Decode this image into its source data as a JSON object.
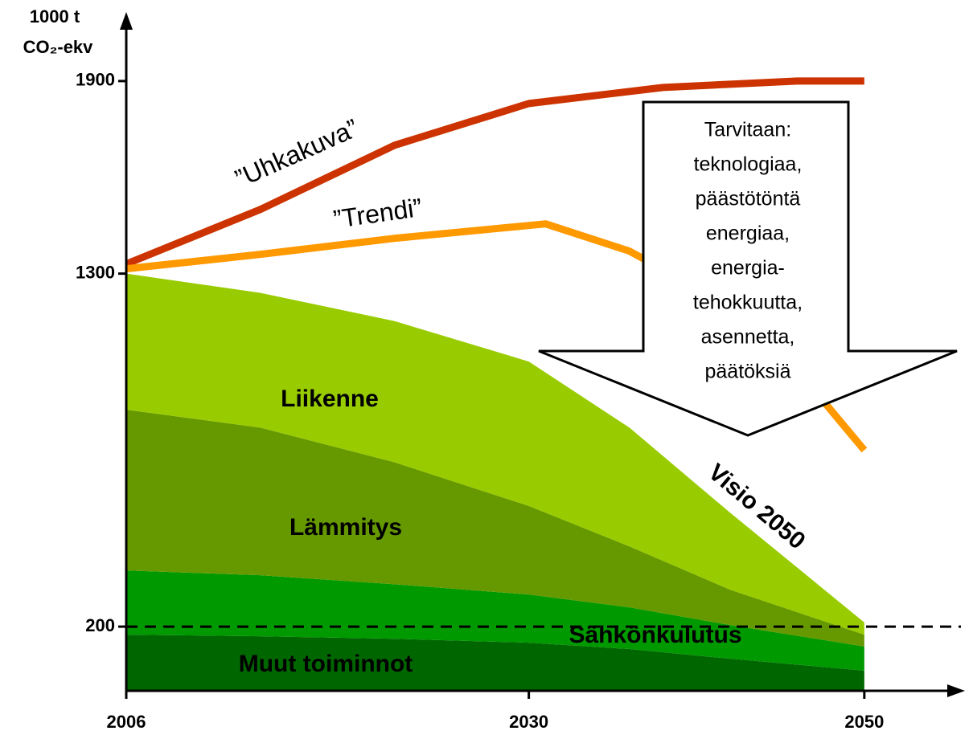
{
  "chart_data": {
    "type": "area",
    "ylabel": [
      "1000 t",
      "CO₂-ekv"
    ],
    "x": [
      2006,
      2014,
      2022,
      2030,
      2036,
      2042,
      2050
    ],
    "xlim": [
      2006,
      2056
    ],
    "xticks": [
      2006,
      2030,
      2050
    ],
    "ylim": [
      0,
      2115
    ],
    "yticks": [
      200,
      1300,
      1900
    ],
    "reference_line": 200,
    "series": [
      {
        "name": "Muut toiminnot",
        "style": "area",
        "color": "#006600",
        "values": [
          175,
          170,
          162,
          150,
          130,
          100,
          63
        ]
      },
      {
        "name": "Sähkönkulutus",
        "style": "area",
        "color": "#009900",
        "values": [
          200,
          190,
          170,
          150,
          130,
          105,
          75
        ]
      },
      {
        "name": "Lämmitys",
        "style": "area",
        "color": "#669900",
        "values": [
          501,
          460,
          380,
          276,
          190,
          110,
          37
        ]
      },
      {
        "name": "Liikenne",
        "style": "area",
        "color": "#99cc00",
        "values": [
          424,
          420,
          440,
          450,
          370,
          240,
          38
        ]
      }
    ],
    "lines": [
      {
        "name": "”Uhkakuva”",
        "color": "#cc3300",
        "x": [
          2006,
          2014,
          2022,
          2030,
          2038,
          2046,
          2050
        ],
        "values": [
          1330,
          1500,
          1700,
          1830,
          1880,
          1900,
          1900
        ]
      },
      {
        "name": "”Trendi”",
        "color": "#ff9900",
        "x": [
          2006,
          2014,
          2022,
          2031,
          2036,
          2042,
          2046,
          2050
        ],
        "values": [
          1315,
          1360,
          1410,
          1455,
          1370,
          1200,
          1000,
          750
        ]
      }
    ],
    "annotations": [
      "Visio 2050"
    ],
    "arrow_text": [
      "Tarvitaan:",
      "teknologiaa,",
      "päästötöntä",
      "energiaa,",
      "energia-",
      "tehokkuutta,",
      "asennetta,",
      "päätöksiä"
    ]
  }
}
